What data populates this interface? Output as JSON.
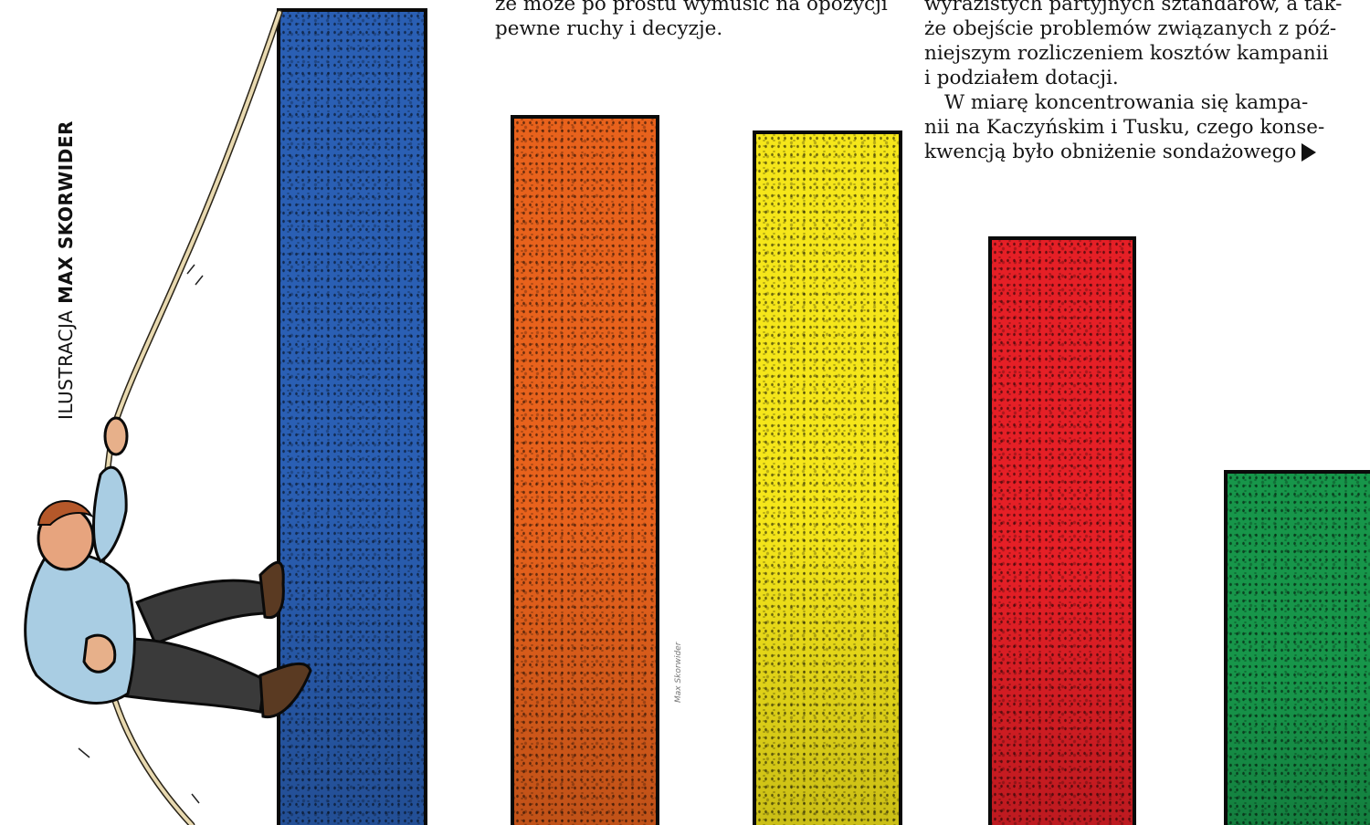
{
  "credit": {
    "prefix": "ILUSTRACJA",
    "author": "MAX SKORWIDER"
  },
  "article": {
    "column_a": [
      "że może po prostu wymusić na opozycji",
      "pewne ruchy i decyzje."
    ],
    "column_b": [
      "wyrazistych partyjnych sztandarów, a tak-",
      "że obejście problemów związanych z póź-",
      "niejszym rozliczeniem kosztów kampanii",
      "i podziałem dotacji.",
      "W miarę koncentrowania się kampa-",
      "nii na Kaczyńskim i Tusku, czego konse-",
      "kwencją było obniżenie sondażowego"
    ]
  },
  "illustration": {
    "bar_colors": [
      "#2a5fb4",
      "#e8621c",
      "#f5e61a",
      "#e51f26",
      "#17964a"
    ],
    "signature": "Max Skorwider"
  }
}
